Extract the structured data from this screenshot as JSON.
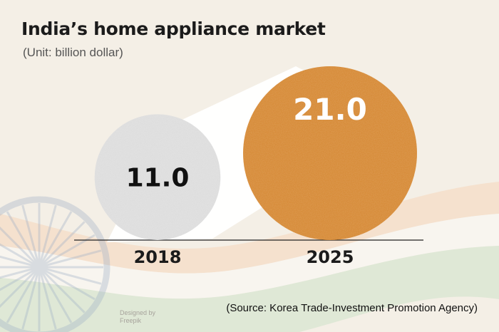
{
  "header": {
    "title": "India’s home appliance market",
    "subtitle": "(Unit: billion dollar)"
  },
  "footer": {
    "source": "(Source: Korea Trade-Investment Promotion Agency)",
    "credit_line1": "Designed by",
    "credit_line2": "Freepik"
  },
  "colors": {
    "bubble_2018": "#dcdcdc",
    "bubble_2025": "#d5862f",
    "label_2018": "#111111",
    "label_2025": "#ffffff",
    "background": "#f4efe6"
  },
  "chart_data": {
    "type": "bubble",
    "title": "India’s home appliance market",
    "subtitle": "(Unit: billion dollar)",
    "categories": [
      "2018",
      "2025"
    ],
    "values": [
      11.0,
      21.0
    ],
    "value_labels": [
      "11.0",
      "21.0"
    ],
    "xlabel": "",
    "ylabel": "",
    "grid": false,
    "legend": "none"
  }
}
